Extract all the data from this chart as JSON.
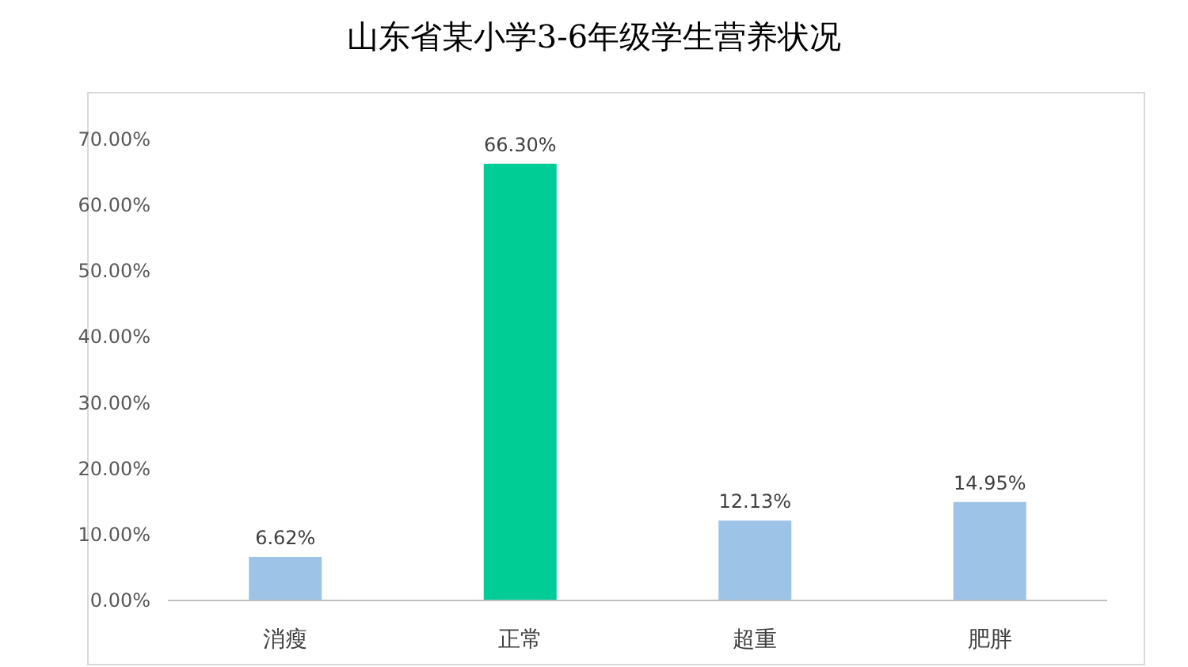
{
  "chart_data": {
    "type": "bar",
    "title": "山东省某小学3-6年级学生营养状况",
    "categories": [
      "消瘦",
      "正常",
      "超重",
      "肥胖"
    ],
    "values": [
      6.62,
      66.3,
      12.13,
      14.95
    ],
    "colors": [
      "#9dc3e6",
      "#00cc96",
      "#9dc3e6",
      "#9dc3e6"
    ],
    "value_labels": [
      "6.62%",
      "66.30%",
      "12.13%",
      "14.95%"
    ],
    "ylim": [
      0,
      70
    ],
    "yticks": [
      {
        "value": 0,
        "label": "0.00%"
      },
      {
        "value": 10,
        "label": "10.00%"
      },
      {
        "value": 20,
        "label": "20.00%"
      },
      {
        "value": 30,
        "label": "30.00%"
      },
      {
        "value": 40,
        "label": "40.00%"
      },
      {
        "value": 50,
        "label": "50.00%"
      },
      {
        "value": 60,
        "label": "60.00%"
      },
      {
        "value": 70,
        "label": "70.00%"
      }
    ],
    "grid": false
  }
}
